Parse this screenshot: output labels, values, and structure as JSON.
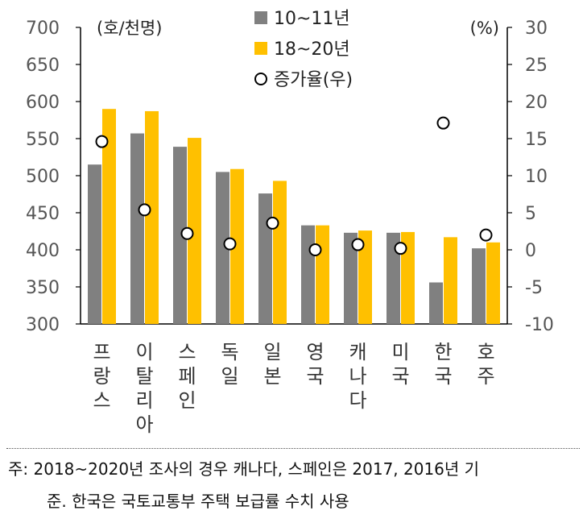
{
  "chart_data": {
    "type": "bar",
    "categories": [
      "프랑스",
      "이탈리아",
      "스페인",
      "독일",
      "일본",
      "영국",
      "캐나다",
      "미국",
      "한국",
      "호주"
    ],
    "series": [
      {
        "name": "10~11년",
        "values": [
          515,
          557,
          539,
          505,
          476,
          433,
          423,
          423,
          356,
          402
        ],
        "color": "#808080"
      },
      {
        "name": "18~20년",
        "values": [
          590,
          587,
          551,
          509,
          493,
          433,
          426,
          424,
          417,
          410
        ],
        "color": "#FFC000"
      }
    ],
    "line_series": {
      "name": "증가율(우)",
      "values": [
        14.6,
        5.4,
        2.2,
        0.8,
        3.6,
        0.0,
        0.7,
        0.2,
        17.1,
        2.0
      ],
      "marker": "open-circle"
    },
    "left_axis": {
      "label": "(호/천명)",
      "min": 300,
      "max": 700,
      "ticks": [
        300,
        350,
        400,
        450,
        500,
        550,
        600,
        650,
        700
      ]
    },
    "right_axis": {
      "label": "(%)",
      "min": -10,
      "max": 30,
      "ticks": [
        -10,
        -5,
        0,
        5,
        10,
        15,
        20,
        25,
        30
      ]
    },
    "legend_position": "top-center",
    "grid": false
  },
  "notes": {
    "line1": "주: 2018~2020년 조사의 경우 캐나다, 스페인은 2017, 2016년 기",
    "line2": "준. 한국은 국토교통부 주택 보급률 수치 사용"
  },
  "colors": {
    "axis": "#000000",
    "tick_text": "#555555",
    "marker_stroke": "#000000",
    "marker_fill": "#ffffff"
  }
}
